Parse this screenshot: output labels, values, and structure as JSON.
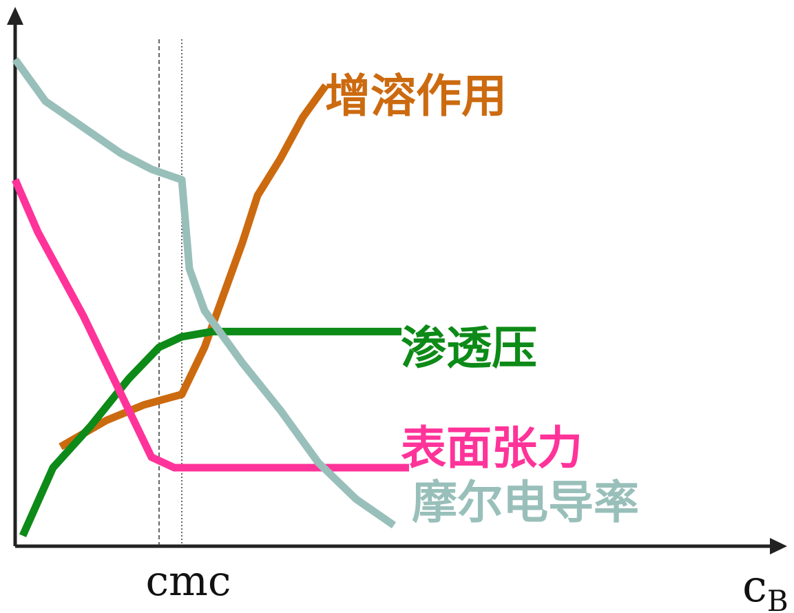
{
  "chart_data": {
    "type": "line",
    "title": "",
    "xlabel": "c",
    "xlabel_subscript": "B",
    "ylabel": "",
    "x_marker_label": "cmc",
    "xlim": [
      0,
      10
    ],
    "ylim": [
      0,
      10
    ],
    "grid": false,
    "markers": [
      {
        "x": 1.9,
        "style": "dashed"
      },
      {
        "x": 2.2,
        "style": "dotted"
      }
    ],
    "series": [
      {
        "name": "增溶作用",
        "color": "#cc6a10",
        "x": [
          0.6,
          1.2,
          1.7,
          2.2,
          2.5,
          2.7,
          3.0,
          3.2,
          3.5,
          3.8,
          4.1
        ],
        "y": [
          1.9,
          2.4,
          2.7,
          2.9,
          3.8,
          4.6,
          5.8,
          6.7,
          7.4,
          8.2,
          8.8
        ]
      },
      {
        "name": "渗透压",
        "color": "#0d8a17",
        "x": [
          0.1,
          0.5,
          1.0,
          1.5,
          1.9,
          2.2,
          2.6,
          3.5,
          5.1
        ],
        "y": [
          0.2,
          1.5,
          2.3,
          3.2,
          3.8,
          4.0,
          4.1,
          4.1,
          4.1
        ]
      },
      {
        "name": "表面张力",
        "color": "#ff3399",
        "x": [
          0.0,
          0.3,
          0.6,
          0.9,
          1.2,
          1.5,
          1.8,
          2.1,
          2.5,
          3.5,
          5.2
        ],
        "y": [
          7.0,
          6.0,
          5.2,
          4.4,
          3.5,
          2.6,
          1.7,
          1.5,
          1.5,
          1.5,
          1.5
        ]
      },
      {
        "name": "摩尔电导率",
        "color": "#99bfba",
        "x": [
          0.0,
          0.4,
          0.9,
          1.4,
          1.8,
          2.2,
          2.3,
          2.5,
          3.0,
          3.5,
          4.0,
          4.5,
          5.0
        ],
        "y": [
          9.3,
          8.5,
          8.0,
          7.5,
          7.2,
          7.0,
          5.3,
          4.5,
          3.5,
          2.6,
          1.6,
          0.9,
          0.4
        ]
      }
    ]
  }
}
